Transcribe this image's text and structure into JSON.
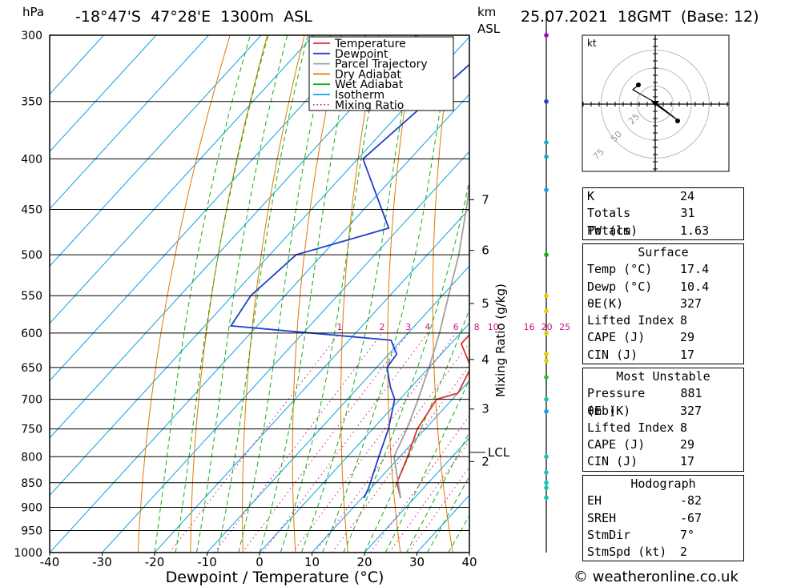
{
  "header": {
    "unit_hpa": "hPa",
    "location": "-18°47'S  47°28'E  1300m  ASL",
    "unit_km": "km",
    "unit_asl": "ASL",
    "datetime": "25.07.2021  18GMT  (Base: 12)"
  },
  "legend": {
    "items": [
      {
        "label": "Temperature",
        "color": "#e03030",
        "style": "solid"
      },
      {
        "label": "Dewpoint",
        "color": "#2040d0",
        "style": "solid"
      },
      {
        "label": "Parcel Trajectory",
        "color": "#a0a0a0",
        "style": "solid"
      },
      {
        "label": "Dry Adiabat",
        "color": "#e07a00",
        "style": "solid"
      },
      {
        "label": "Wet Adiabat",
        "color": "#10b010",
        "style": "solid"
      },
      {
        "label": "Isotherm",
        "color": "#10a0e0",
        "style": "solid"
      },
      {
        "label": "Mixing Ratio",
        "color": "#d01080",
        "style": "dotted"
      }
    ]
  },
  "chart_data": {
    "type": "line",
    "xlabel": "Dewpoint / Temperature (°C)",
    "xlim": [
      -40,
      40
    ],
    "xticks": [
      "-40",
      "-30",
      "-20",
      "-10",
      "0",
      "10",
      "20",
      "30",
      "40"
    ],
    "pressure_levels": [
      "300",
      "350",
      "400",
      "450",
      "500",
      "550",
      "600",
      "650",
      "700",
      "750",
      "800",
      "850",
      "900",
      "950",
      "1000"
    ],
    "skew_deg_per_log": 75,
    "km_ticks": [
      {
        "label": "7",
        "p": 440
      },
      {
        "label": "6",
        "p": 495
      },
      {
        "label": "5",
        "p": 560
      },
      {
        "label": "4",
        "p": 638
      },
      {
        "label": "3",
        "p": 716
      },
      {
        "label": "2",
        "p": 809
      }
    ],
    "lcl": {
      "label": "LCL",
      "p": 792
    },
    "mixing_ratio_axis": "Mixing Ratio (g/kg)",
    "mixing_ratio_labels": [
      "1",
      "2",
      "3",
      "4",
      "6",
      "8",
      "10",
      "16",
      "20",
      "25"
    ],
    "series": [
      {
        "name": "Temperature",
        "color": "#e03030",
        "points": [
          [
            881,
            17.4
          ],
          [
            850,
            14.0
          ],
          [
            800,
            11.5
          ],
          [
            750,
            8.5
          ],
          [
            700,
            7.0
          ],
          [
            690,
            10.0
          ],
          [
            650,
            8.0
          ],
          [
            615,
            2.0
          ],
          [
            600,
            2.0
          ],
          [
            550,
            -3.5
          ],
          [
            500,
            -9.0
          ],
          [
            450,
            -15.5
          ],
          [
            400,
            -23.0
          ],
          [
            375,
            -29.0
          ],
          [
            325,
            -40.0
          ]
        ]
      },
      {
        "name": "Dewpoint",
        "color": "#2040d0",
        "points": [
          [
            881,
            10.4
          ],
          [
            860,
            9.5
          ],
          [
            800,
            6.0
          ],
          [
            750,
            3.0
          ],
          [
            700,
            -1.0
          ],
          [
            680,
            -4.0
          ],
          [
            650,
            -8.0
          ],
          [
            630,
            -8.5
          ],
          [
            610,
            -12.0
          ],
          [
            590,
            -45.0
          ],
          [
            550,
            -46.5
          ],
          [
            500,
            -45.0
          ],
          [
            470,
            -32.0
          ],
          [
            400,
            -49.0
          ],
          [
            300,
            -44.0
          ]
        ]
      },
      {
        "name": "Parcel Trajectory",
        "color": "#a0a0a0",
        "points": [
          [
            881,
            17.4
          ],
          [
            800,
            8.9
          ],
          [
            750,
            6.5
          ],
          [
            700,
            3.5
          ],
          [
            650,
            0.0
          ],
          [
            600,
            -4.0
          ],
          [
            550,
            -8.8
          ],
          [
            500,
            -14.0
          ],
          [
            450,
            -20.5
          ],
          [
            400,
            -28.0
          ],
          [
            350,
            -37.0
          ],
          [
            300,
            -48.0
          ]
        ]
      }
    ]
  },
  "hodograph": {
    "unit": "kt",
    "rings": [
      "25",
      "50",
      "75"
    ]
  },
  "indices": {
    "k_label": "K",
    "k_value": "24",
    "tt_label": "Totals Totals",
    "tt_value": "31",
    "pw_label": "PW (cm)",
    "pw_value": "1.63"
  },
  "surface": {
    "title": "Surface",
    "temp_label": "Temp (°C)",
    "temp_value": "17.4",
    "dewp_label": "Dewp (°C)",
    "dewp_value": "10.4",
    "theta_label": "θE(K)",
    "theta_value": "327",
    "li_label": "Lifted Index",
    "li_value": "8",
    "cape_label": "CAPE (J)",
    "cape_value": "29",
    "cin_label": "CIN (J)",
    "cin_value": "17"
  },
  "most_unstable": {
    "title": "Most Unstable",
    "pressure_label": "Pressure (mb)",
    "pressure_value": "881",
    "theta_label": "θE (K)",
    "theta_value": "327",
    "li_label": "Lifted Index",
    "li_value": "8",
    "cape_label": "CAPE (J)",
    "cape_value": "29",
    "cin_label": "CIN (J)",
    "cin_value": "17"
  },
  "hodo_table": {
    "title": "Hodograph",
    "eh_label": "EH",
    "eh_value": "-82",
    "sreh_label": "SREH",
    "sreh_value": "-67",
    "stmdir_label": "StmDir",
    "stmdir_value": "7°",
    "stmspd_label": "StmSpd (kt)",
    "stmspd_value": "2"
  },
  "footer": {
    "copyright": "© weatheronline.co.uk"
  }
}
